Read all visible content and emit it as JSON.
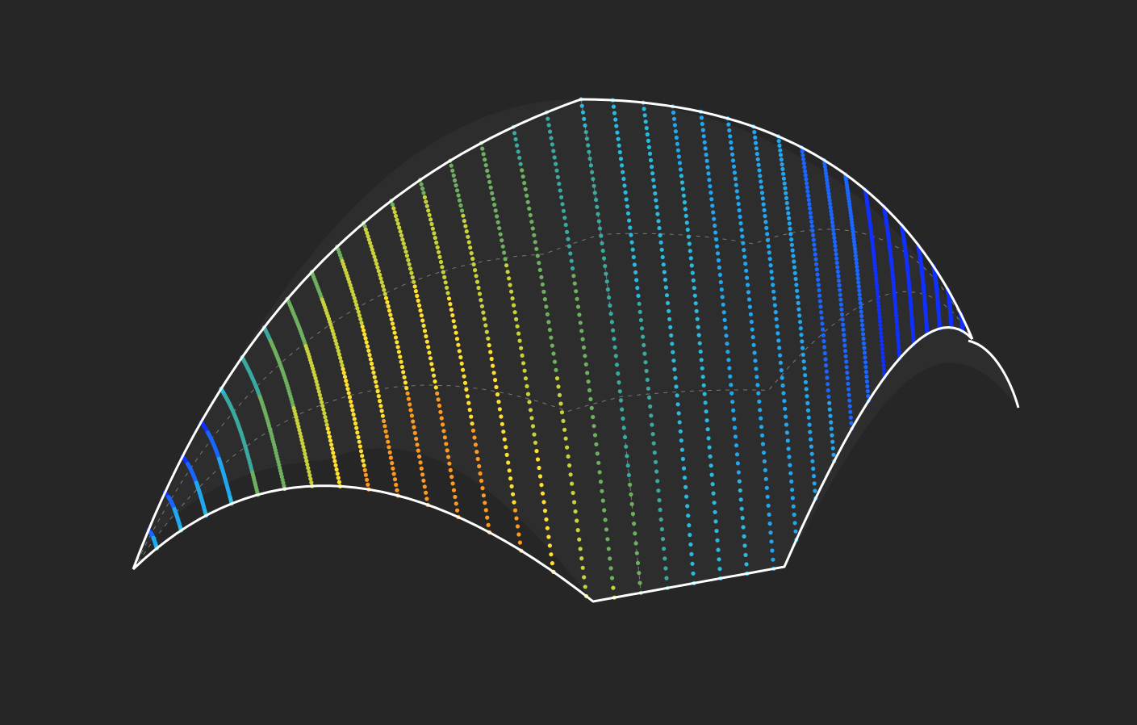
{
  "scene": {
    "background": "#262626",
    "outline_color": "#ffffff",
    "guide_color": "#9a9a9a",
    "panel_color": "#2d2d2d",
    "stripe_count": 36,
    "colormap": [
      "#1030ff",
      "#1a66ff",
      "#22a6f0",
      "#2bb9de",
      "#3aa9a0",
      "#6fb060",
      "#c9d23a",
      "#ffe030",
      "#ff9a20",
      "#ff4a1c"
    ],
    "value_range": [
      0,
      1
    ]
  }
}
